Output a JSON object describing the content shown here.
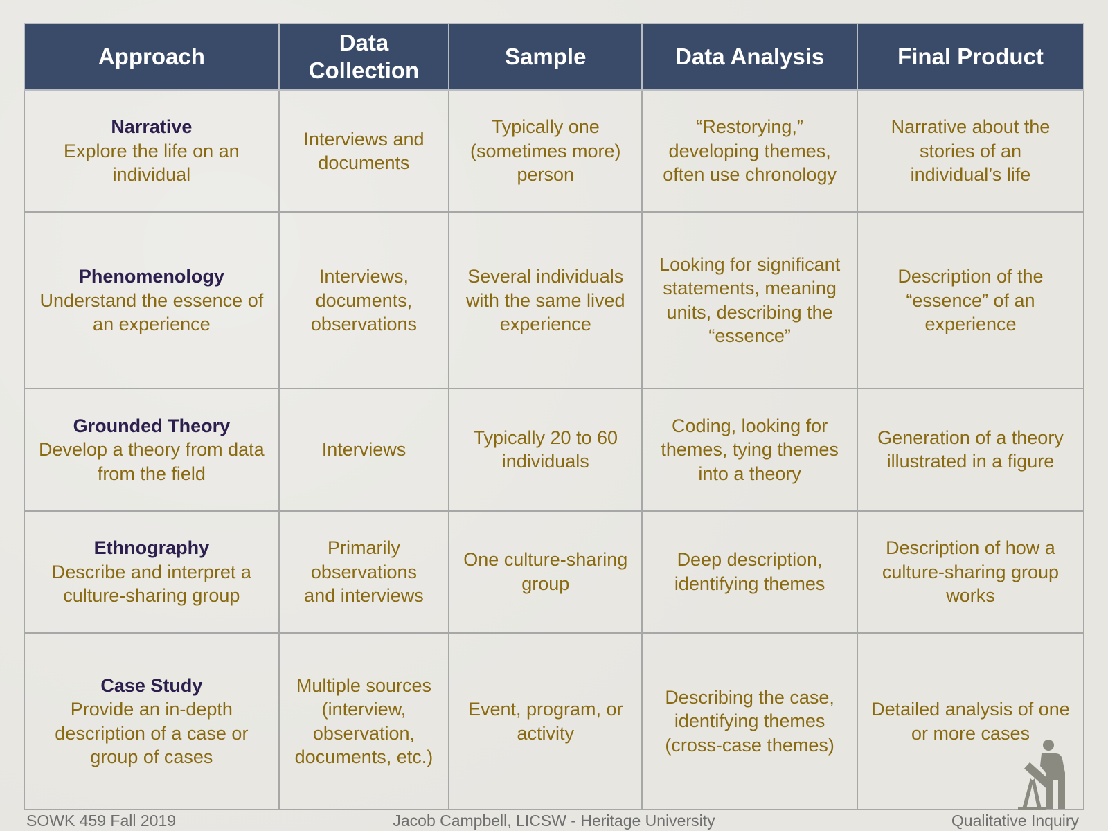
{
  "table": {
    "headers": [
      "Approach",
      "Data Collection",
      "Sample",
      "Data Analysis",
      "Final Product"
    ],
    "rows": [
      {
        "approach": {
          "name": "Narrative",
          "description": "Explore the life on an individual"
        },
        "data_collection": "Interviews and documents",
        "sample": "Typically one (sometimes more) person",
        "data_analysis": "“Restorying,” developing themes, often use chronology",
        "final_product": "Narrative about the stories of an individual’s life"
      },
      {
        "approach": {
          "name": "Phenomenology",
          "description": "Understand the essence of an experience"
        },
        "data_collection": "Interviews, documents, observations",
        "sample": "Several individuals with the same lived experience",
        "data_analysis": "Looking for significant statements, meaning units, describing the “essence”",
        "final_product": "Description of the “essence” of an experience"
      },
      {
        "approach": {
          "name": "Grounded Theory",
          "description": "Develop a theory from data from the field"
        },
        "data_collection": "Interviews",
        "sample": "Typically 20 to 60 individuals",
        "data_analysis": "Coding, looking for themes, tying themes into a theory",
        "final_product": "Generation of a theory illustrated in a figure"
      },
      {
        "approach": {
          "name": "Ethnography",
          "description": "Describe and interpret a culture-sharing group"
        },
        "data_collection": "Primarily observations and interviews",
        "sample": "One culture-sharing group",
        "data_analysis": "Deep description, identifying themes",
        "final_product": "Description of how a culture-sharing group works"
      },
      {
        "approach": {
          "name": "Case Study",
          "description": "Provide an in-depth description of a case or group of cases"
        },
        "data_collection": "Multiple sources (interview, observation, documents, etc.)",
        "sample": "Event, program, or activity",
        "data_analysis": "Describing the case, identifying themes (cross-case themes)",
        "final_product": "Detailed analysis of one or more cases"
      }
    ]
  },
  "footer": {
    "left": "SOWK 459 Fall 2019",
    "center": "Jacob Campbell, LICSW - Heritage University",
    "right": "Qualitative Inquiry"
  },
  "logo": {
    "icon": "telescope-person-icon",
    "color": "#8a8a80"
  },
  "colors": {
    "header_bg": "#3a4b69",
    "header_text": "#ffffff",
    "approach_name": "#2c1f4e",
    "cell_text": "#8a6a10",
    "background": "#e7e6e1"
  }
}
